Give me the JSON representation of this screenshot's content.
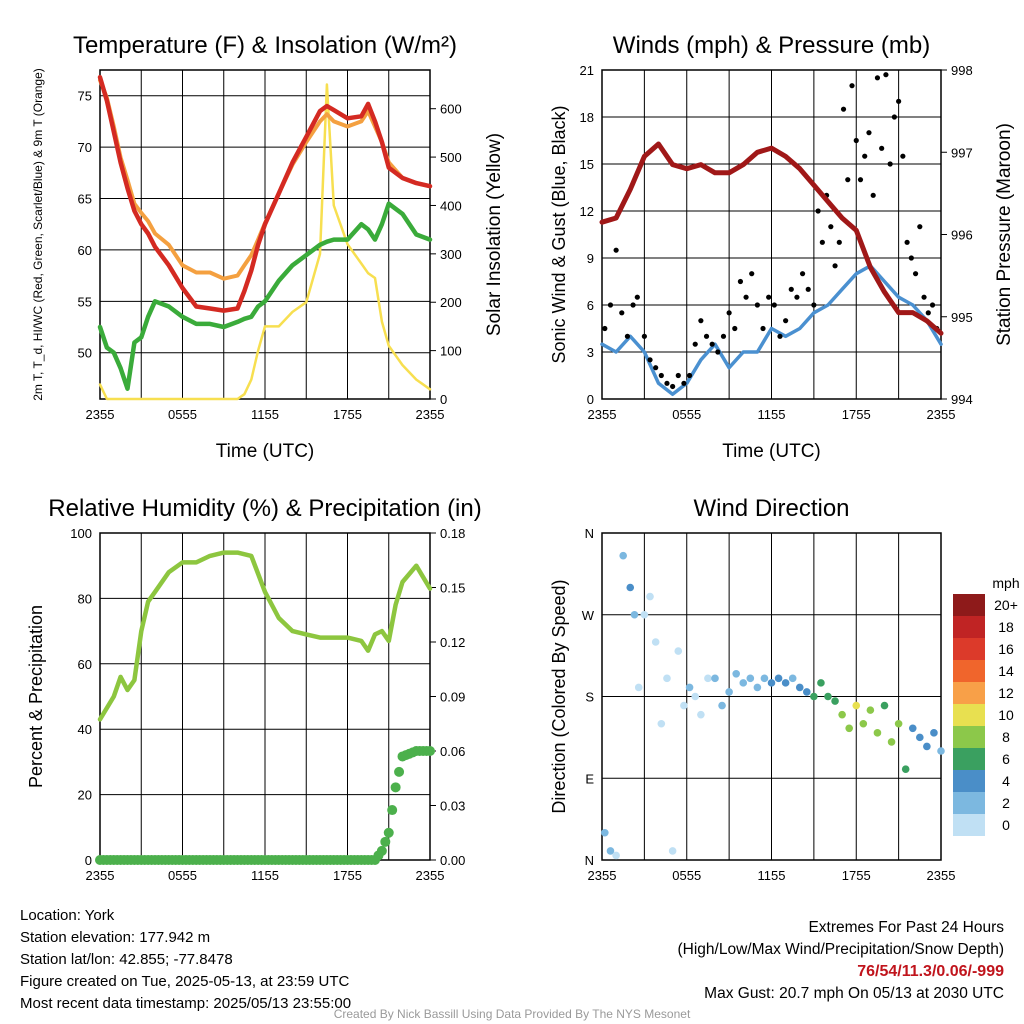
{
  "colors": {
    "temp": "#d42a22",
    "dewpoint": "#3aab3a",
    "index": "#f47a28",
    "temp9m": "#f4a040",
    "solar": "#f7df50",
    "gust": "#000000",
    "wind": "#4a90d0",
    "pressure": "#a01818",
    "rh": "#8dc63f",
    "precip": "#4cb04c"
  },
  "chart_data": [
    {
      "type": "line",
      "title": "Temperature (F) & Insolation (W/m²)",
      "xlabel": "Time (UTC)",
      "ylabel": "2m T, T_d, HI/WC (Red, Green, Scarlet/Blue) & 9m T (Orange)",
      "y2label": "Solar Insolation (Yellow)",
      "xticks": [
        "2355",
        "0555",
        "1155",
        "1755",
        "2355"
      ],
      "yticks": [
        50,
        55,
        60,
        65,
        70,
        75
      ],
      "y2ticks": [
        0,
        100,
        200,
        300,
        400,
        500,
        600
      ],
      "ylim": [
        45.5,
        77.5
      ],
      "y2lim": [
        0,
        680
      ],
      "grid": true,
      "x": [
        0,
        0.5,
        1,
        1.5,
        2,
        2.5,
        3,
        3.5,
        4,
        5,
        6,
        7,
        8,
        9,
        10,
        10.5,
        11,
        11.5,
        12,
        13,
        14,
        15,
        16,
        16.5,
        17,
        18,
        19,
        19.5,
        20,
        20.5,
        21,
        22,
        23,
        24
      ],
      "series": [
        {
          "name": "2m T",
          "axis": "left",
          "values": [
            76.8,
            74.5,
            71.5,
            68.5,
            66.0,
            63.8,
            62.5,
            61.6,
            60.3,
            58.5,
            56.3,
            54.5,
            54.3,
            54.1,
            54.3,
            56.0,
            58.0,
            60.5,
            62.5,
            65.5,
            68.5,
            71.0,
            73.5,
            74.0,
            73.6,
            72.8,
            73.0,
            74.2,
            72.5,
            70.5,
            68.0,
            67.0,
            66.5,
            66.2
          ]
        },
        {
          "name": "2m T_d",
          "axis": "left",
          "values": [
            52.5,
            50.5,
            50.0,
            48.5,
            46.5,
            51.0,
            51.5,
            53.5,
            55.0,
            54.5,
            53.5,
            52.8,
            52.8,
            52.5,
            53.0,
            53.3,
            53.5,
            54.5,
            55.0,
            57.0,
            58.5,
            59.5,
            60.5,
            60.8,
            61.0,
            61.0,
            62.5,
            62.0,
            61.0,
            62.5,
            64.5,
            63.5,
            61.5,
            61.0
          ]
        },
        {
          "name": "9m T",
          "axis": "left",
          "values": [
            76.5,
            74.8,
            72.0,
            69.0,
            66.8,
            64.5,
            63.6,
            62.8,
            61.6,
            60.5,
            58.5,
            57.8,
            57.8,
            57.2,
            57.5,
            58.5,
            59.5,
            61.0,
            62.6,
            65.5,
            68.3,
            70.5,
            72.5,
            73.2,
            72.5,
            72.0,
            72.5,
            73.5,
            72.0,
            70.5,
            68.5,
            67.0,
            66.5,
            66.2
          ]
        },
        {
          "name": "Solar Insolation",
          "axis": "right",
          "values": [
            30,
            0,
            0,
            0,
            0,
            0,
            0,
            0,
            0,
            0,
            0,
            0,
            0,
            0,
            0,
            10,
            40,
            100,
            150,
            150,
            180,
            200,
            300,
            650,
            400,
            320,
            280,
            260,
            250,
            160,
            110,
            70,
            40,
            20
          ]
        }
      ]
    },
    {
      "type": "line",
      "title": "Winds (mph) & Pressure (mb)",
      "xlabel": "Time (UTC)",
      "ylabel": "Sonic Wind & Gust (Blue, Black)",
      "y2label": "Station Pressure (Maroon)",
      "xticks": [
        "2355",
        "0555",
        "1155",
        "1755",
        "2355"
      ],
      "yticks": [
        0,
        3,
        6,
        9,
        12,
        15,
        18,
        21
      ],
      "y2ticks": [
        994,
        995,
        996,
        997,
        998
      ],
      "ylim": [
        0,
        21
      ],
      "y2lim": [
        994,
        998
      ],
      "grid": true,
      "x": [
        0,
        1,
        2,
        3,
        4,
        5,
        6,
        7,
        8,
        9,
        10,
        11,
        12,
        13,
        14,
        15,
        16,
        17,
        18,
        19,
        20,
        21,
        22,
        23,
        24
      ],
      "series": [
        {
          "name": "Sonic Wind",
          "axis": "left",
          "values": [
            3.5,
            3.0,
            4.0,
            3.0,
            1.0,
            0.3,
            1.0,
            2.5,
            3.5,
            2.0,
            3.0,
            3.0,
            4.5,
            4.0,
            4.5,
            5.5,
            6.0,
            7.0,
            8.0,
            8.5,
            7.5,
            6.5,
            6.0,
            5.0,
            3.5
          ]
        },
        {
          "name": "Pressure",
          "axis": "right",
          "values": [
            996.15,
            996.2,
            996.55,
            996.95,
            997.1,
            996.85,
            996.8,
            996.85,
            996.75,
            996.75,
            996.85,
            997.0,
            997.05,
            996.95,
            996.8,
            996.6,
            996.4,
            996.2,
            996.05,
            995.6,
            995.3,
            995.05,
            995.05,
            994.95,
            994.8
          ]
        }
      ],
      "points": {
        "name": "Gust",
        "x": [
          0.2,
          0.6,
          1.0,
          1.4,
          1.8,
          2.2,
          2.5,
          3.0,
          3.4,
          3.8,
          4.2,
          4.6,
          5.0,
          5.4,
          5.8,
          6.2,
          6.6,
          7.0,
          7.4,
          7.8,
          8.2,
          8.6,
          9.0,
          9.4,
          9.8,
          10.2,
          10.6,
          11.0,
          11.4,
          11.8,
          12.2,
          12.6,
          13.0,
          13.4,
          13.8,
          14.2,
          14.6,
          15.0,
          15.3,
          15.6,
          15.9,
          16.2,
          16.5,
          16.8,
          17.1,
          17.4,
          17.7,
          18.0,
          18.3,
          18.6,
          18.9,
          19.2,
          19.5,
          19.8,
          20.1,
          20.4,
          20.7,
          21.0,
          21.3,
          21.6,
          21.9,
          22.2,
          22.5,
          22.8,
          23.1,
          23.4,
          23.7
        ],
        "values": [
          4.5,
          6.0,
          9.5,
          5.5,
          4.0,
          6.0,
          6.5,
          4.0,
          2.5,
          2.0,
          1.5,
          1.0,
          0.8,
          1.5,
          1.0,
          1.5,
          3.5,
          5.0,
          4.0,
          3.5,
          3.0,
          4.0,
          5.5,
          4.5,
          7.5,
          6.5,
          8.0,
          6.0,
          4.5,
          6.5,
          6.0,
          4.0,
          5.0,
          7.0,
          6.5,
          8.0,
          7.0,
          6.0,
          12.0,
          10.0,
          13.0,
          11.0,
          8.5,
          10.0,
          18.5,
          14.0,
          20.0,
          16.5,
          14.0,
          15.5,
          17.0,
          13.0,
          20.5,
          16.0,
          20.7,
          15.0,
          18.0,
          19.0,
          15.5,
          10.0,
          9.0,
          8.0,
          11.0,
          6.5,
          5.5,
          6.0,
          4.5
        ]
      }
    },
    {
      "type": "line",
      "title": "Relative Humidity (%) & Precipitation (in)",
      "ylabel": "Percent & Precipitation",
      "xticks": [
        "2355",
        "0555",
        "1155",
        "1755",
        "2355"
      ],
      "yticks": [
        0,
        20,
        40,
        60,
        80,
        100
      ],
      "y2ticks": [
        "0.00",
        "0.03",
        "0.06",
        "0.09",
        "0.12",
        "0.15",
        "0.18"
      ],
      "ylim": [
        0,
        100
      ],
      "y2lim": [
        0,
        0.18
      ],
      "grid": true,
      "x": [
        0,
        1,
        1.5,
        2,
        2.5,
        3,
        3.5,
        4,
        5,
        6,
        7,
        8,
        9,
        10,
        11,
        12,
        13,
        14,
        15,
        16,
        17,
        18,
        19,
        19.5,
        20,
        20.5,
        21,
        21.5,
        22,
        23,
        24
      ],
      "series": [
        {
          "name": "Relative Humidity",
          "axis": "left",
          "values": [
            43,
            50,
            56,
            52,
            55,
            70,
            79,
            82,
            88,
            91,
            91,
            93,
            94,
            94,
            93,
            82,
            74,
            70,
            69,
            68,
            68,
            68,
            67,
            64,
            69,
            70,
            67,
            78,
            85,
            90,
            83
          ]
        },
        {
          "name": "Precipitation",
          "axis": "right",
          "values": [
            0,
            0,
            0,
            0,
            0,
            0,
            0,
            0,
            0,
            0,
            0,
            0,
            0,
            0,
            0,
            0,
            0,
            0,
            0,
            0,
            0,
            0,
            0,
            0,
            0,
            0.005,
            0.015,
            0.04,
            0.057,
            0.06,
            0.06
          ]
        }
      ]
    },
    {
      "type": "scatter",
      "title": "Wind Direction",
      "ylabel": "Direction (Colored By Speed)",
      "xticks": [
        "2355",
        "0555",
        "1155",
        "1755",
        "2355"
      ],
      "yticks": [
        "N",
        "E",
        "S",
        "W",
        "N"
      ],
      "ylim": [
        0,
        360
      ],
      "grid": true,
      "legend": {
        "title": "mph",
        "labels": [
          "20+",
          "18",
          "16",
          "14",
          "12",
          "10",
          "8",
          "6",
          "4",
          "2",
          "0"
        ],
        "colors": [
          "#8e1a1a",
          "#c02424",
          "#dc3a2a",
          "#f0652c",
          "#f8a048",
          "#e8e050",
          "#8cc84a",
          "#3aa060",
          "#4a8ec8",
          "#7cb8e0",
          "#c0e0f4"
        ],
        "placement": "right"
      },
      "points": {
        "x": [
          0.2,
          0.6,
          1.0,
          1.5,
          2.0,
          2.3,
          2.6,
          3.0,
          3.4,
          3.8,
          4.2,
          4.6,
          5.0,
          5.4,
          5.8,
          6.2,
          6.6,
          7.0,
          7.5,
          8.0,
          8.5,
          9.0,
          9.5,
          10.0,
          10.5,
          11.0,
          11.5,
          12.0,
          12.5,
          13.0,
          13.5,
          14.0,
          14.5,
          15.0,
          15.5,
          16.0,
          16.5,
          17.0,
          17.5,
          18.0,
          18.5,
          19.0,
          19.5,
          20.0,
          20.5,
          21.0,
          21.5,
          22.0,
          22.5,
          23.0,
          23.5,
          24.0
        ],
        "values": [
          30,
          10,
          5,
          335,
          300,
          270,
          190,
          270,
          290,
          240,
          150,
          200,
          10,
          230,
          170,
          190,
          180,
          160,
          200,
          200,
          170,
          185,
          205,
          195,
          200,
          190,
          200,
          195,
          200,
          195,
          200,
          190,
          185,
          180,
          195,
          180,
          175,
          160,
          145,
          170,
          150,
          165,
          140,
          170,
          130,
          150,
          100,
          145,
          135,
          125,
          140,
          120
        ],
        "speed": [
          2,
          2,
          1,
          3,
          4,
          3,
          1,
          1,
          0,
          1,
          0,
          1,
          0,
          1,
          1,
          2,
          1,
          1,
          1,
          2,
          2,
          2,
          3,
          3,
          2,
          3,
          3,
          4,
          4,
          4,
          3,
          5,
          5,
          6,
          6,
          6,
          7,
          8,
          9,
          10,
          8,
          9,
          8,
          7,
          8,
          8,
          6,
          5,
          5,
          4,
          4,
          3
        ]
      }
    }
  ],
  "info": {
    "location": "Location: York",
    "elevation": "Station elevation: 177.942 m",
    "latlon": "Station lat/lon: 42.855; -77.8478",
    "created": "Figure created on Tue, 2025-05-13, at 23:59 UTC",
    "recent": "Most recent data timestamp: 2025/05/13 23:55:00"
  },
  "extremes": {
    "heading": "Extremes For Past 24 Hours",
    "subheading": "(High/Low/Max Wind/Precipitation/Snow Depth)",
    "values": "76/54/11.3/0.06/-999",
    "gust": "Max Gust: 20.7 mph On 05/13 at 2030 UTC"
  },
  "credit": "Created By Nick Bassill Using Data Provided By The NYS Mesonet"
}
